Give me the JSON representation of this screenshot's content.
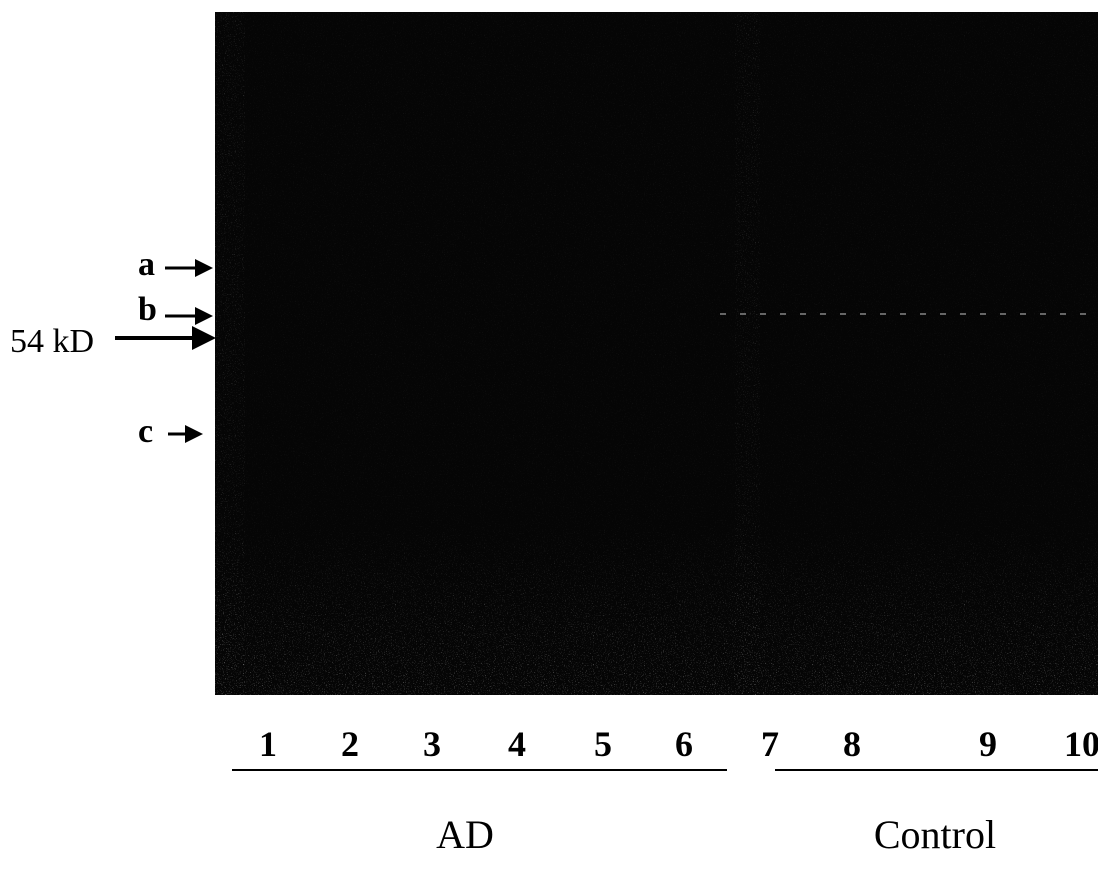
{
  "markers": [
    {
      "label": "a"
    },
    {
      "label": "b"
    },
    {
      "label": "54 kD"
    },
    {
      "label": "c"
    }
  ],
  "lanes": [
    "1",
    "2",
    "3",
    "4",
    "5",
    "6",
    "7",
    "8",
    "9",
    "10"
  ],
  "groups": [
    {
      "label": "AD"
    },
    {
      "label": "Control"
    }
  ]
}
